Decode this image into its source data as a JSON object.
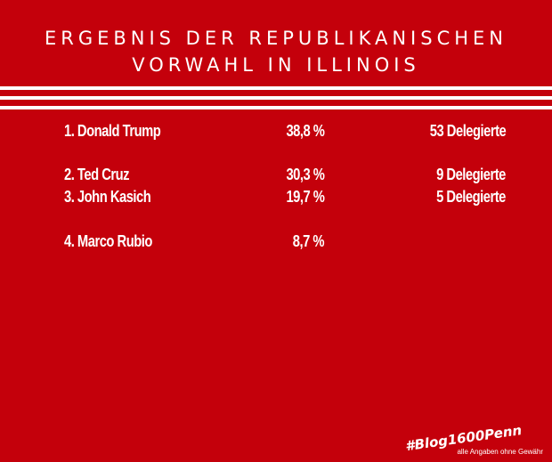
{
  "title": {
    "line1": "ERGEBNIS DER REPUBLIKANISCHEN",
    "line2": "VORWAHL IN ILLINOIS"
  },
  "results": [
    {
      "name": "1.  Donald Trump",
      "percent": "38,8 %",
      "delegates": "53 Delegierte"
    },
    {
      "name": "2.  Ted Cruz",
      "percent": "30,3 %",
      "delegates": "9 Delegierte"
    },
    {
      "name": "3.  John Kasich",
      "percent": "19,7 %",
      "delegates": "5 Delegierte"
    },
    {
      "name": "4.  Marco Rubio",
      "percent": "8,7 %",
      "delegates": ""
    }
  ],
  "hashtag": "#Blog1600Penn",
  "disclaimer": "alle Angaben ohne Gewähr",
  "colors": {
    "background": "#c4000b",
    "text": "#ffffff"
  }
}
